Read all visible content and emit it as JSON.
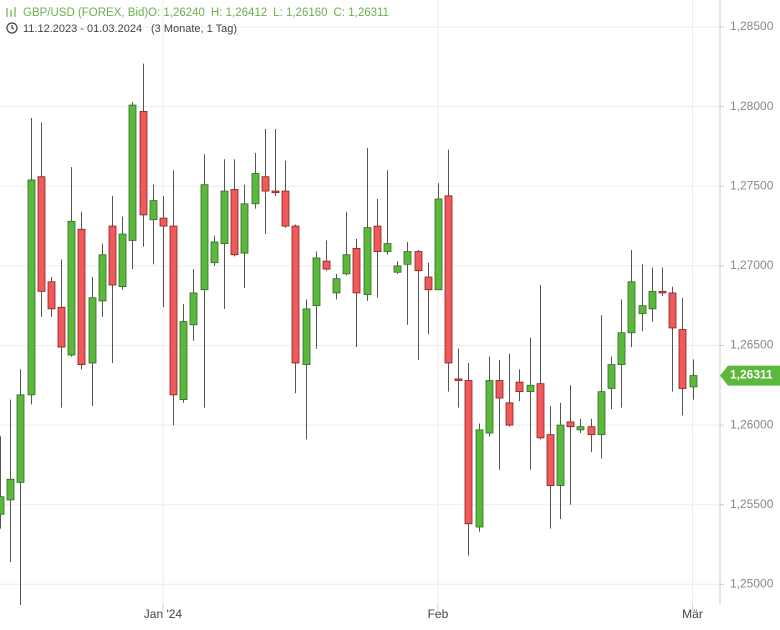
{
  "chart_data": {
    "type": "candlestick",
    "title": "GBP/USD (FOREX, Bid)",
    "ohlc_labels": [
      "O: 1,26240",
      "H: 1,26412",
      "L: 1,26160",
      "C: 1,26311"
    ],
    "subtitle": "11.12.2023 - 01.03.2024",
    "period_note": "(3 Monate, 1 Tag)",
    "up_color": "#5cb83c",
    "down_color": "#f05a5a",
    "open": [
      1.2544,
      1.2553,
      1.2564,
      1.2619,
      1.2756,
      1.269,
      1.2674,
      1.2644,
      1.2723,
      1.2639,
      1.2678,
      1.2725,
      1.2687,
      1.2716,
      1.2797,
      1.2729,
      1.273,
      1.2725,
      1.2616,
      1.2663,
      1.2685,
      1.2702,
      1.2714,
      1.2748,
      1.2708,
      1.2739,
      1.2756,
      1.2747,
      1.2747,
      1.2725,
      1.2638,
      1.2675,
      1.2703,
      1.2683,
      1.2695,
      1.2711,
      1.2682,
      1.2725,
      1.2709,
      1.2696,
      1.2701,
      1.2709,
      1.2693,
      1.2685,
      1.2744,
      1.2629,
      1.2628,
      1.2536,
      1.2595,
      1.2628,
      1.2614,
      1.2627,
      1.2621,
      1.2626,
      1.2594,
      1.2562,
      1.2602,
      1.2597,
      1.2599,
      1.2594,
      1.2623,
      1.2638,
      1.2658,
      1.267,
      1.2673,
      1.2684,
      1.2683,
      1.266,
      1.2624
    ],
    "high": [
      1.2593,
      1.2616,
      1.2635,
      1.2793,
      1.279,
      1.2693,
      1.2704,
      1.2762,
      1.2734,
      1.2693,
      1.2714,
      1.2744,
      1.2731,
      1.2803,
      1.2827,
      1.2751,
      1.2744,
      1.276,
      1.2676,
      1.2698,
      1.277,
      1.2719,
      1.2767,
      1.2767,
      1.2751,
      1.2771,
      1.2786,
      1.2786,
      1.2766,
      1.2726,
      1.2679,
      1.2709,
      1.2716,
      1.2695,
      1.2734,
      1.2717,
      1.2774,
      1.2742,
      1.276,
      1.2703,
      1.2715,
      1.271,
      1.2702,
      1.2752,
      1.2773,
      1.2648,
      1.2639,
      1.2601,
      1.2643,
      1.2641,
      1.2645,
      1.2635,
      1.2655,
      1.2688,
      1.2612,
      1.2614,
      1.2625,
      1.2604,
      1.2604,
      1.2669,
      1.2643,
      1.2679,
      1.271,
      1.2701,
      1.2699,
      1.2699,
      1.2687,
      1.268,
      1.26412
    ],
    "low": [
      1.2535,
      1.2514,
      1.2487,
      1.2613,
      1.2668,
      1.2668,
      1.2611,
      1.2643,
      1.2635,
      1.2612,
      1.2668,
      1.2639,
      1.2685,
      1.2698,
      1.2712,
      1.2701,
      1.2674,
      1.26,
      1.2614,
      1.2653,
      1.2611,
      1.27,
      1.2673,
      1.2706,
      1.2686,
      1.2736,
      1.272,
      1.2744,
      1.2724,
      1.262,
      1.2591,
      1.2648,
      1.2697,
      1.2679,
      1.2694,
      1.2649,
      1.2678,
      1.268,
      1.2707,
      1.2695,
      1.2663,
      1.2641,
      1.2657,
      1.2685,
      1.2621,
      1.2611,
      1.2518,
      1.2533,
      1.2593,
      1.2572,
      1.2599,
      1.2615,
      1.2572,
      1.2591,
      1.2535,
      1.2541,
      1.255,
      1.2595,
      1.2583,
      1.2579,
      1.261,
      1.2611,
      1.2649,
      1.2659,
      1.2665,
      1.2681,
      1.2621,
      1.2606,
      1.2616
    ],
    "close": [
      1.2555,
      1.2566,
      1.2619,
      1.2754,
      1.2684,
      1.2673,
      1.2649,
      1.2728,
      1.2638,
      1.268,
      1.2707,
      1.2688,
      1.272,
      1.2801,
      1.2732,
      1.2741,
      1.2725,
      1.2619,
      1.2665,
      1.2683,
      1.2751,
      1.2715,
      1.2747,
      1.2707,
      1.2739,
      1.2758,
      1.2747,
      1.2746,
      1.2725,
      1.2639,
      1.2673,
      1.2705,
      1.2698,
      1.2692,
      1.2707,
      1.2683,
      1.2724,
      1.2709,
      1.2714,
      1.27,
      1.2709,
      1.2697,
      1.2685,
      1.2742,
      1.2639,
      1.2628,
      1.2538,
      1.2597,
      1.2628,
      1.2617,
      1.26,
      1.2621,
      1.2625,
      1.2592,
      1.2562,
      1.26,
      1.2599,
      1.2599,
      1.2594,
      1.2621,
      1.2638,
      1.2658,
      1.269,
      1.2675,
      1.2684,
      1.2683,
      1.2661,
      1.2623,
      1.26311
    ],
    "last_price": {
      "value": 1.26311,
      "label": "1,26311"
    },
    "xlim": [
      0,
      70.7
    ],
    "xticks": [
      {
        "value": 16,
        "label": "Jan '24"
      },
      {
        "value": 43,
        "label": "Feb"
      },
      {
        "value": 68,
        "label": "Mär"
      }
    ],
    "ylim": [
      1.2487,
      1.2867
    ],
    "yticks": [
      {
        "value": 1.25,
        "label": "1,25000"
      },
      {
        "value": 1.255,
        "label": "1,25500"
      },
      {
        "value": 1.26,
        "label": "1,26000"
      },
      {
        "value": 1.265,
        "label": "1,26500"
      },
      {
        "value": 1.27,
        "label": "1,27000"
      },
      {
        "value": 1.275,
        "label": "1,27500"
      },
      {
        "value": 1.28,
        "label": "1,28000"
      },
      {
        "value": 1.285,
        "label": "1,28500"
      }
    ],
    "grid": true
  }
}
